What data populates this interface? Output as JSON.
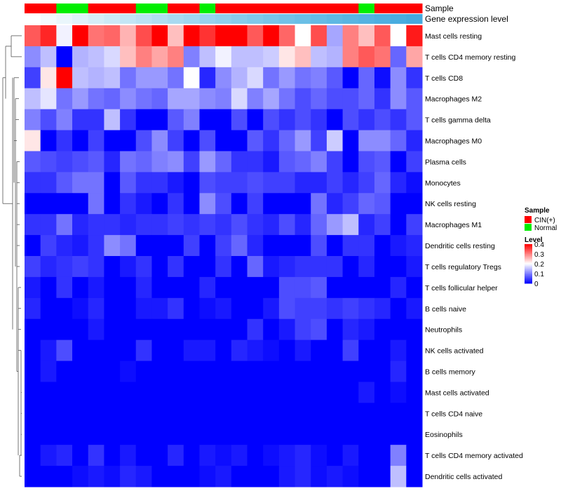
{
  "chart_data": {
    "type": "heatmap",
    "annotation_tracks": [
      {
        "name": "Sample",
        "colors": [
          "#FF0000",
          "#FF0000",
          "#00EE00",
          "#00EE00",
          "#FF0000",
          "#FF0000",
          "#FF0000",
          "#00EE00",
          "#00EE00",
          "#FF0000",
          "#FF0000",
          "#00EE00",
          "#FF0000",
          "#FF0000",
          "#FF0000",
          "#FF0000",
          "#FF0000",
          "#FF0000",
          "#FF0000",
          "#FF0000",
          "#FF0000",
          "#00EE00",
          "#FF0000",
          "#FF0000",
          "#FF0000"
        ]
      },
      {
        "name": "Gene expression level",
        "colors": [
          "#FFFFFF",
          "#F4FAFD",
          "#EAF6FB",
          "#E0F2FA",
          "#D6EEF8",
          "#CCEAF7",
          "#C3E6F5",
          "#BAE2F4",
          "#B1DEF2",
          "#A8DAF1",
          "#A0D7F0",
          "#98D3EE",
          "#90D0ED",
          "#88CCEB",
          "#80C9EA",
          "#79C5E9",
          "#72C2E7",
          "#6BBFE6",
          "#65BBE5",
          "#5FB8E3",
          "#59B5E2",
          "#54B2E1",
          "#4FAFE0",
          "#4AACDF",
          "#45A9DE"
        ]
      }
    ],
    "rows": [
      {
        "label": "Mast cells resting",
        "values": [
          0.33,
          0.37,
          0.19,
          0.4,
          0.31,
          0.32,
          0.26,
          0.34,
          0.4,
          0.25,
          0.4,
          0.36,
          0.4,
          0.4,
          0.33,
          0.4,
          0.32,
          0.2,
          0.34,
          0.13,
          0.3,
          0.25,
          0.33,
          0.2,
          0.38
        ]
      },
      {
        "label": "T cells CD4 memory resting",
        "values": [
          0.11,
          0.15,
          0.0,
          0.14,
          0.15,
          0.17,
          0.25,
          0.3,
          0.27,
          0.3,
          0.1,
          0.15,
          0.19,
          0.15,
          0.15,
          0.16,
          0.22,
          0.25,
          0.15,
          0.14,
          0.3,
          0.33,
          0.31,
          0.08,
          0.27
        ]
      },
      {
        "label": "T cells CD8",
        "values": [
          0.05,
          0.22,
          0.4,
          0.15,
          0.14,
          0.15,
          0.09,
          0.12,
          0.12,
          0.09,
          0.2,
          0.03,
          0.11,
          0.14,
          0.17,
          0.09,
          0.12,
          0.09,
          0.1,
          0.07,
          0.0,
          0.08,
          0.01,
          0.11,
          0.04
        ]
      },
      {
        "label": "Macrophages M2",
        "values": [
          0.15,
          0.18,
          0.09,
          0.12,
          0.09,
          0.08,
          0.11,
          0.09,
          0.08,
          0.13,
          0.13,
          0.11,
          0.1,
          0.17,
          0.1,
          0.13,
          0.09,
          0.06,
          0.08,
          0.06,
          0.06,
          0.08,
          0.04,
          0.11,
          0.07
        ]
      },
      {
        "label": "T cells gamma delta",
        "values": [
          0.1,
          0.06,
          0.1,
          0.04,
          0.04,
          0.15,
          0.04,
          0.0,
          0.0,
          0.07,
          0.1,
          0.0,
          0.0,
          0.06,
          0.0,
          0.06,
          0.04,
          0.06,
          0.04,
          0.0,
          0.06,
          0.04,
          0.06,
          0.04,
          0.07
        ]
      },
      {
        "label": "Macrophages M0",
        "values": [
          0.22,
          0.0,
          0.04,
          0.0,
          0.05,
          0.0,
          0.0,
          0.06,
          0.11,
          0.05,
          0.0,
          0.06,
          0.0,
          0.0,
          0.07,
          0.04,
          0.08,
          0.12,
          0.05,
          0.16,
          0.0,
          0.11,
          0.11,
          0.08,
          0.03
        ]
      },
      {
        "label": "Plasma cells",
        "values": [
          0.07,
          0.06,
          0.05,
          0.06,
          0.07,
          0.03,
          0.09,
          0.08,
          0.1,
          0.11,
          0.05,
          0.12,
          0.08,
          0.04,
          0.04,
          0.02,
          0.07,
          0.08,
          0.1,
          0.05,
          0.0,
          0.06,
          0.07,
          0.0,
          0.05
        ]
      },
      {
        "label": "Monocytes",
        "values": [
          0.04,
          0.04,
          0.07,
          0.09,
          0.09,
          0.0,
          0.07,
          0.04,
          0.04,
          0.02,
          0.0,
          0.06,
          0.05,
          0.05,
          0.06,
          0.05,
          0.05,
          0.03,
          0.03,
          0.05,
          0.03,
          0.05,
          0.08,
          0.03,
          0.01
        ]
      },
      {
        "label": "NK cells resting",
        "values": [
          0.0,
          0.0,
          0.0,
          0.0,
          0.09,
          0.0,
          0.04,
          0.02,
          0.0,
          0.04,
          0.0,
          0.11,
          0.06,
          0.0,
          0.05,
          0.0,
          0.0,
          0.0,
          0.09,
          0.03,
          0.05,
          0.08,
          0.07,
          0.0,
          0.0
        ]
      },
      {
        "label": "Macrophages M1",
        "values": [
          0.04,
          0.04,
          0.09,
          0.03,
          0.04,
          0.04,
          0.03,
          0.04,
          0.04,
          0.05,
          0.04,
          0.05,
          0.04,
          0.06,
          0.04,
          0.03,
          0.06,
          0.03,
          0.08,
          0.12,
          0.15,
          0.03,
          0.05,
          0.0,
          0.05
        ]
      },
      {
        "label": "Dendritic cells resting",
        "values": [
          0.0,
          0.05,
          0.03,
          0.02,
          0.04,
          0.11,
          0.09,
          0.0,
          0.0,
          0.0,
          0.05,
          0.0,
          0.05,
          0.08,
          0.03,
          0.0,
          0.0,
          0.0,
          0.06,
          0.0,
          0.04,
          0.04,
          0.0,
          0.02,
          0.03
        ]
      },
      {
        "label": "T cells regulatory  Tregs",
        "values": [
          0.05,
          0.03,
          0.04,
          0.05,
          0.04,
          0.0,
          0.02,
          0.04,
          0.0,
          0.04,
          0.0,
          0.0,
          0.04,
          0.0,
          0.08,
          0.02,
          0.03,
          0.04,
          0.04,
          0.04,
          0.0,
          0.03,
          0.0,
          0.0,
          0.02
        ]
      },
      {
        "label": "T cells follicular helper",
        "values": [
          0.02,
          0.0,
          0.04,
          0.0,
          0.02,
          0.0,
          0.0,
          0.03,
          0.0,
          0.0,
          0.0,
          0.03,
          0.0,
          0.0,
          0.0,
          0.0,
          0.06,
          0.06,
          0.07,
          0.0,
          0.0,
          0.0,
          0.0,
          0.03,
          0.0
        ]
      },
      {
        "label": "B cells naive",
        "values": [
          0.03,
          0.0,
          0.0,
          0.01,
          0.03,
          0.0,
          0.0,
          0.02,
          0.02,
          0.04,
          0.0,
          0.01,
          0.02,
          0.0,
          0.0,
          0.02,
          0.06,
          0.05,
          0.05,
          0.04,
          0.05,
          0.04,
          0.03,
          0.0,
          0.02
        ]
      },
      {
        "label": "Neutrophils",
        "values": [
          0.0,
          0.0,
          0.0,
          0.0,
          0.02,
          0.0,
          0.0,
          0.0,
          0.0,
          0.0,
          0.0,
          0.0,
          0.0,
          0.0,
          0.04,
          0.0,
          0.02,
          0.05,
          0.06,
          0.0,
          0.03,
          0.02,
          0.0,
          0.0,
          0.0
        ]
      },
      {
        "label": "NK cells activated",
        "values": [
          0.0,
          0.02,
          0.06,
          0.0,
          0.0,
          0.0,
          0.0,
          0.04,
          0.0,
          0.0,
          0.02,
          0.02,
          0.0,
          0.03,
          0.02,
          0.01,
          0.0,
          0.02,
          0.0,
          0.0,
          0.05,
          0.0,
          0.0,
          0.02,
          0.0
        ]
      },
      {
        "label": "B cells memory",
        "values": [
          0.0,
          0.02,
          0.0,
          0.0,
          0.0,
          0.0,
          0.01,
          0.0,
          0.0,
          0.0,
          0.0,
          0.0,
          0.0,
          0.0,
          0.0,
          0.0,
          0.0,
          0.0,
          0.0,
          0.0,
          0.0,
          0.0,
          0.0,
          0.03,
          0.0
        ]
      },
      {
        "label": "Mast cells activated",
        "values": [
          0.0,
          0.0,
          0.0,
          0.0,
          0.0,
          0.0,
          0.0,
          0.0,
          0.0,
          0.0,
          0.0,
          0.0,
          0.0,
          0.0,
          0.0,
          0.0,
          0.0,
          0.0,
          0.0,
          0.0,
          0.0,
          0.02,
          0.0,
          0.01,
          0.0
        ]
      },
      {
        "label": "T cells CD4 naive",
        "values": [
          0.0,
          0.0,
          0.0,
          0.0,
          0.0,
          0.0,
          0.0,
          0.0,
          0.0,
          0.0,
          0.0,
          0.0,
          0.0,
          0.0,
          0.0,
          0.0,
          0.0,
          0.0,
          0.0,
          0.0,
          0.0,
          0.0,
          0.0,
          0.0,
          0.0
        ]
      },
      {
        "label": "Eosinophils",
        "values": [
          0.0,
          0.0,
          0.0,
          0.0,
          0.0,
          0.0,
          0.0,
          0.0,
          0.0,
          0.0,
          0.0,
          0.0,
          0.0,
          0.0,
          0.0,
          0.0,
          0.0,
          0.0,
          0.0,
          0.0,
          0.0,
          0.0,
          0.0,
          0.0,
          0.0
        ]
      },
      {
        "label": "T cells CD4 memory activated",
        "values": [
          0.0,
          0.02,
          0.03,
          0.0,
          0.04,
          0.0,
          0.02,
          0.0,
          0.0,
          0.03,
          0.0,
          0.02,
          0.01,
          0.02,
          0.0,
          0.01,
          0.02,
          0.03,
          0.01,
          0.0,
          0.02,
          0.0,
          0.0,
          0.1,
          0.0
        ]
      },
      {
        "label": "Dendritic cells activated",
        "values": [
          0.0,
          0.0,
          0.0,
          0.01,
          0.02,
          0.01,
          0.03,
          0.02,
          0.0,
          0.0,
          0.0,
          0.01,
          0.02,
          0.0,
          0.0,
          0.0,
          0.02,
          0.03,
          0.01,
          0.02,
          0.01,
          0.0,
          0.0,
          0.15,
          0.0
        ]
      }
    ],
    "color_scale": {
      "min": 0,
      "max": 0.4,
      "low": "#0000FF",
      "mid": "#FFFFFF",
      "high": "#FF0000",
      "mid_value": 0.2
    },
    "legend_sample": {
      "title": "Sample",
      "entries": [
        {
          "label": "CIN(+)",
          "color": "#FF0000"
        },
        {
          "label": "Normal",
          "color": "#00EE00"
        }
      ]
    },
    "legend_level": {
      "title": "Level",
      "ticks": [
        {
          "value": 0.4,
          "label": "0.4"
        },
        {
          "value": 0.3,
          "label": "0.3"
        },
        {
          "value": 0.2,
          "label": "0.2"
        },
        {
          "value": 0.1,
          "label": "0.1"
        },
        {
          "value": 0,
          "label": "0"
        }
      ]
    },
    "dendrogram": "row clustering tree on left side"
  }
}
